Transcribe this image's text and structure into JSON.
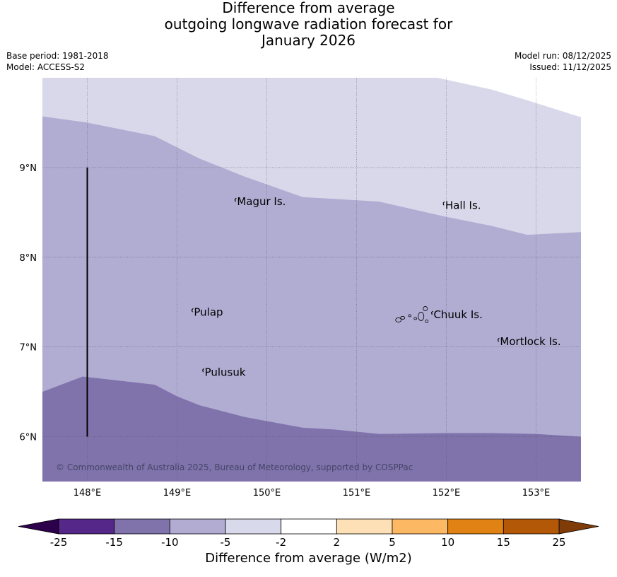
{
  "title": {
    "line1": "Difference from average",
    "line2": "outgoing longwave radiation forecast for",
    "line3": "January 2026"
  },
  "meta": {
    "base_period": "Base period: 1981-2018",
    "model": "Model: ACCESS-S2",
    "model_run": "Model run: 08/12/2025",
    "issued": "Issued: 11/12/2025"
  },
  "map": {
    "lon_range": [
      147.5,
      153.5
    ],
    "lat_range": [
      5.5,
      10.0
    ],
    "lon_ticks": [
      148,
      149,
      150,
      151,
      152,
      153
    ],
    "lon_tick_labels": [
      "148°E",
      "149°E",
      "150°E",
      "151°E",
      "152°E",
      "153°E"
    ],
    "lat_ticks": [
      6,
      7,
      8,
      9
    ],
    "lat_tick_labels": [
      "6°N",
      "7°N",
      "8°N",
      "9°N"
    ],
    "zones": [
      {
        "name": "-5 to -2",
        "color": "#d8d8ea"
      },
      {
        "name": "-10 to -5",
        "color": "#b1acd2"
      },
      {
        "name": "-15 to -10",
        "color": "#8073ac"
      }
    ],
    "boundary_upper": [
      [
        147.5,
        9.57
      ],
      [
        148.0,
        9.5
      ],
      [
        148.75,
        9.35
      ],
      [
        149.25,
        9.1
      ],
      [
        149.75,
        8.9
      ],
      [
        150.4,
        8.67
      ],
      [
        150.75,
        8.65
      ],
      [
        151.25,
        8.62
      ],
      [
        152.0,
        8.45
      ],
      [
        152.5,
        8.35
      ],
      [
        152.9,
        8.25
      ],
      [
        153.5,
        8.28
      ]
    ],
    "boundary_lower": [
      [
        147.5,
        6.5
      ],
      [
        147.95,
        6.67
      ],
      [
        148.75,
        6.58
      ],
      [
        149.0,
        6.45
      ],
      [
        149.25,
        6.35
      ],
      [
        149.75,
        6.22
      ],
      [
        150.4,
        6.1
      ],
      [
        150.75,
        6.08
      ],
      [
        151.25,
        6.03
      ],
      [
        152.0,
        6.04
      ],
      [
        152.5,
        6.04
      ],
      [
        153.0,
        6.03
      ],
      [
        153.5,
        6.0
      ]
    ],
    "top_edge": [
      [
        147.5,
        10.0
      ],
      [
        151.9,
        10.0
      ],
      [
        152.5,
        9.87
      ],
      [
        152.9,
        9.75
      ],
      [
        153.5,
        9.56
      ]
    ],
    "cross_section": {
      "lon": 148.0,
      "lat_start": 6.0,
      "lat_end": 9.0
    },
    "places": [
      {
        "name": "Magur Is.",
        "lon": 149.66,
        "lat": 8.58
      },
      {
        "name": "Hall Is.",
        "lon": 151.98,
        "lat": 8.54
      },
      {
        "name": "Pulap",
        "lon": 149.18,
        "lat": 7.35
      },
      {
        "name": "Chuuk Is.",
        "lon": 151.85,
        "lat": 7.32
      },
      {
        "name": "Mortlock Is.",
        "lon": 152.59,
        "lat": 7.02
      },
      {
        "name": "Pulusuk",
        "lon": 149.3,
        "lat": 6.68
      }
    ],
    "copyright": "© Commonwealth of Australia 2025, Bureau of Meteorology, supported by COSPPac"
  },
  "colorbar": {
    "title": "Difference from average (W/m2)",
    "boundaries": [
      "-25",
      "-15",
      "-10",
      "-5",
      "-2",
      "2",
      "5",
      "10",
      "15",
      "25"
    ],
    "colors": [
      "#542788",
      "#8073ac",
      "#b2abd2",
      "#d8daeb",
      "#ffffff",
      "#fee0b6",
      "#fdb863",
      "#e08214",
      "#b35806"
    ],
    "extend_low_color": "#2d004b",
    "extend_high_color": "#7f3b08"
  }
}
